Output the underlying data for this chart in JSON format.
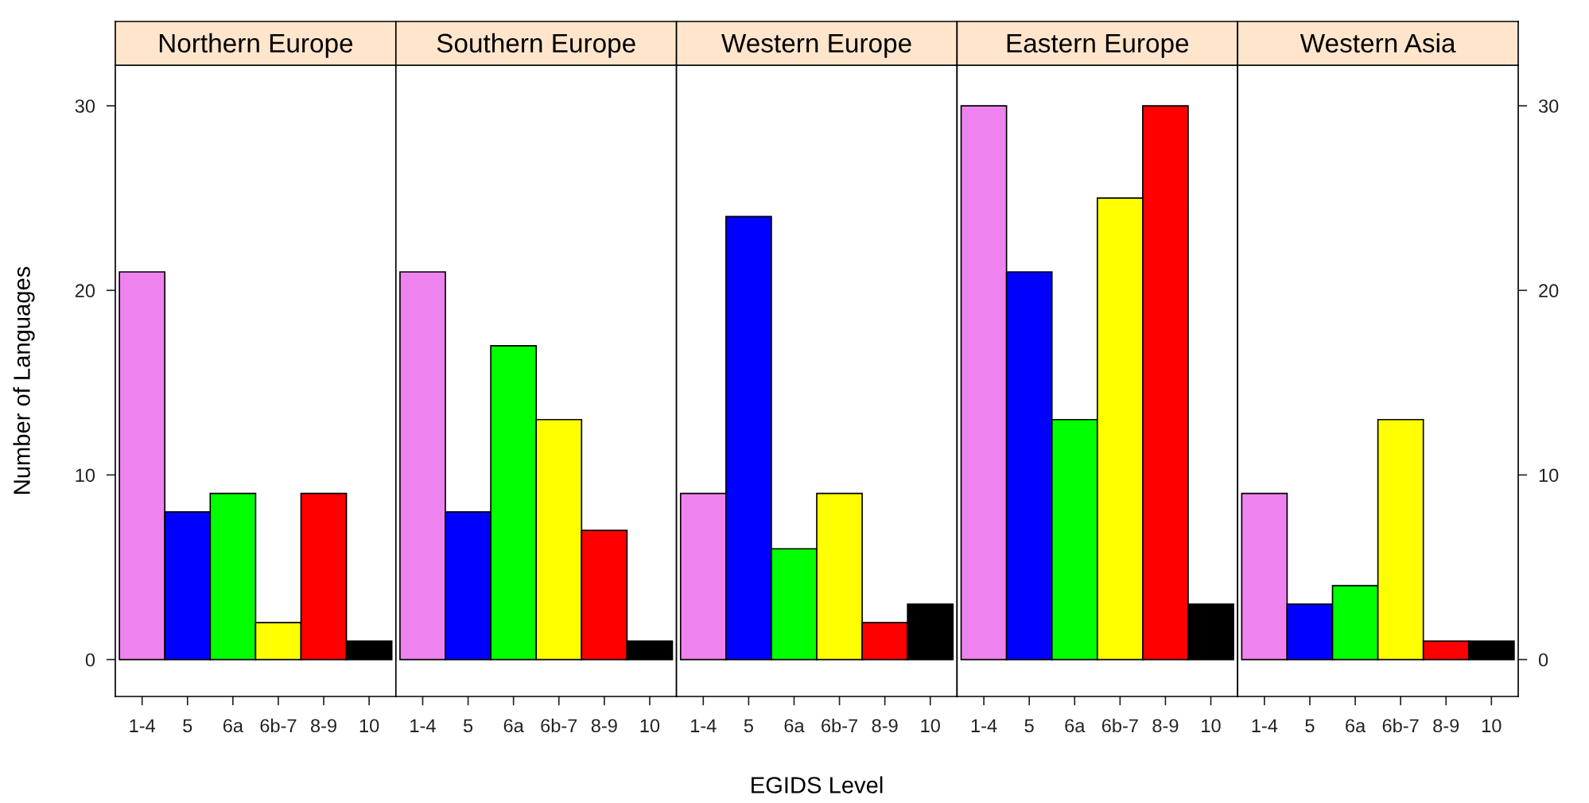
{
  "chart_data": [
    {
      "type": "bar",
      "title": "Northern Europe",
      "ylabel": "Number of Languages",
      "categories": [
        "1-4",
        "5",
        "6a",
        "6b-7",
        "8-9",
        "10"
      ],
      "values": [
        21,
        8,
        9,
        2,
        9,
        1
      ],
      "colors": [
        "#ee82ee",
        "#0000ff",
        "#00ff00",
        "#ffff00",
        "#ff0000",
        "#000000"
      ],
      "ylim": [
        -2,
        32.2
      ],
      "yticks": [
        0,
        10,
        20,
        30
      ],
      "grid": false,
      "legend": false
    },
    {
      "type": "bar",
      "title": "Southern Europe",
      "categories": [
        "1-4",
        "5",
        "6a",
        "6b-7",
        "8-9",
        "10"
      ],
      "values": [
        21,
        8,
        17,
        13,
        7,
        1
      ],
      "colors": [
        "#ee82ee",
        "#0000ff",
        "#00ff00",
        "#ffff00",
        "#ff0000",
        "#000000"
      ],
      "ylim": [
        -2,
        32.2
      ],
      "tick_labels": "x",
      "grid": false,
      "legend": false
    },
    {
      "type": "bar",
      "title": "Western Europe",
      "xlabel": "EGIDS Level",
      "categories": [
        "1-4",
        "5",
        "6a",
        "6b-7",
        "8-9",
        "10"
      ],
      "values": [
        9,
        24,
        6,
        9,
        2,
        3
      ],
      "colors": [
        "#ee82ee",
        "#0000ff",
        "#00ff00",
        "#ffff00",
        "#ff0000",
        "#000000"
      ],
      "ylim": [
        -2,
        32.2
      ],
      "tick_labels": "x",
      "grid": false,
      "legend": false
    },
    {
      "type": "bar",
      "title": "Eastern Europe",
      "categories": [
        "1-4",
        "5",
        "6a",
        "6b-7",
        "8-9",
        "10"
      ],
      "values": [
        30,
        21,
        13,
        25,
        30,
        3
      ],
      "colors": [
        "#ee82ee",
        "#0000ff",
        "#00ff00",
        "#ffff00",
        "#ff0000",
        "#000000"
      ],
      "ylim": [
        -2,
        32.2
      ],
      "tick_labels": "x",
      "grid": false,
      "legend": false
    },
    {
      "type": "bar",
      "title": "Western Asia",
      "categories": [
        "1-4",
        "5",
        "6a",
        "6b-7",
        "8-9",
        "10"
      ],
      "values": [
        9,
        3,
        4,
        13,
        1,
        1
      ],
      "colors": [
        "#ee82ee",
        "#0000ff",
        "#00ff00",
        "#ffff00",
        "#ff0000",
        "#000000"
      ],
      "ylim": [
        -2,
        32.2
      ],
      "yticks": [
        0,
        10,
        20,
        30
      ],
      "grid": false,
      "legend": false
    }
  ]
}
